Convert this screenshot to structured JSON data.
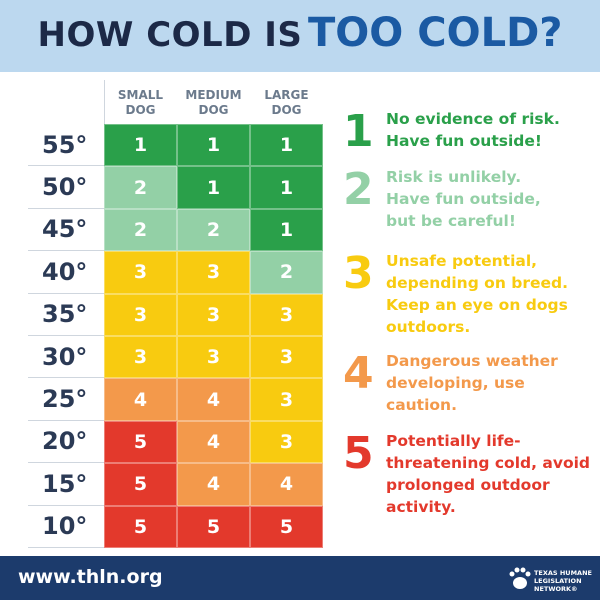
{
  "header": {
    "title_part1": "HOW COLD IS",
    "title_part2": "TOO COLD?"
  },
  "table": {
    "columns": [
      [
        "SMALL",
        "DOG"
      ],
      [
        "MEDIUM",
        "DOG"
      ],
      [
        "LARGE",
        "DOG"
      ]
    ],
    "rows": [
      {
        "temp": "55°",
        "cells": [
          "1",
          "1",
          "1"
        ]
      },
      {
        "temp": "50°",
        "cells": [
          "2",
          "1",
          "1"
        ]
      },
      {
        "temp": "45°",
        "cells": [
          "2",
          "2",
          "1"
        ]
      },
      {
        "temp": "40°",
        "cells": [
          "3",
          "3",
          "2"
        ]
      },
      {
        "temp": "35°",
        "cells": [
          "3",
          "3",
          "3"
        ]
      },
      {
        "temp": "30°",
        "cells": [
          "3",
          "3",
          "3"
        ]
      },
      {
        "temp": "25°",
        "cells": [
          "4",
          "4",
          "3"
        ]
      },
      {
        "temp": "20°",
        "cells": [
          "5",
          "4",
          "3"
        ]
      },
      {
        "temp": "15°",
        "cells": [
          "5",
          "4",
          "4"
        ]
      },
      {
        "temp": "10°",
        "cells": [
          "5",
          "5",
          "5"
        ]
      }
    ]
  },
  "legend": [
    {
      "number": "1",
      "color": "#2aa04a",
      "lines": [
        "No evidence of risk.",
        "Have fun outside!"
      ]
    },
    {
      "number": "2",
      "color": "#93d0a6",
      "lines": [
        "Risk is unlikely.",
        "Have fun outside,",
        "but be careful!"
      ]
    },
    {
      "number": "3",
      "color": "#f8cb10",
      "lines": [
        "Unsafe potential,",
        "depending on breed.",
        "Keep an eye on dogs",
        "outdoors."
      ]
    },
    {
      "number": "4",
      "color": "#f3994b",
      "lines": [
        "Dangerous weather",
        "developing, use",
        "caution."
      ]
    },
    {
      "number": "5",
      "color": "#e3392c",
      "lines": [
        "Potentially life-",
        "threatening cold, avoid",
        "prolonged outdoor",
        "activity."
      ]
    }
  ],
  "footer": {
    "url": "www.thln.org",
    "org": [
      "TEXAS HUMANE",
      "LEGISLATION",
      "NETWORK®"
    ]
  }
}
